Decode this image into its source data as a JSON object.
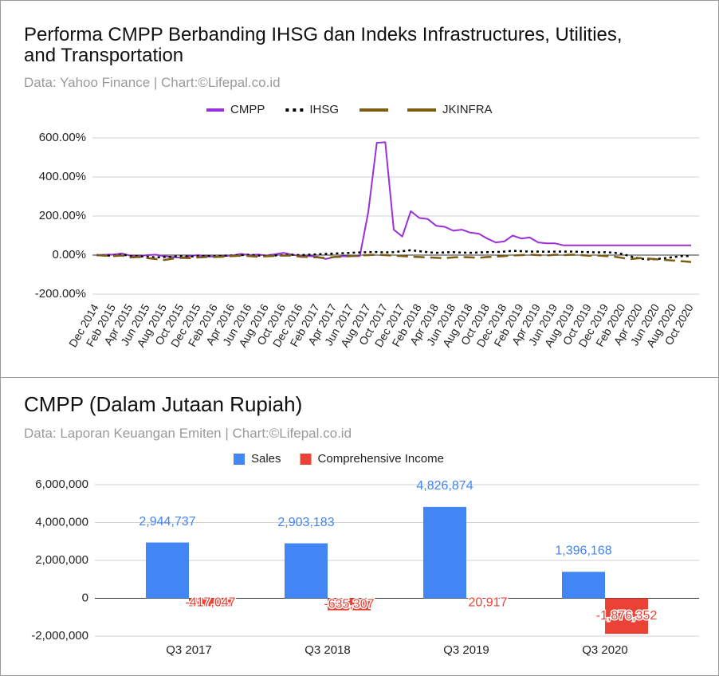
{
  "chart_data": [
    {
      "type": "line",
      "title": "Performa CMPP Berbanding IHSG dan Indeks Infrastructures, Utilities, and Transportation",
      "subtitle": "Data: Yahoo Finance | Chart:©Lifepal.co.id",
      "categories": [
        "Dec 2014",
        null,
        "Feb 2015",
        null,
        "Apr 2015",
        null,
        "Jun 2015",
        null,
        "Aug 2015",
        null,
        "Oct 2015",
        null,
        "Dec 2015",
        null,
        "Feb 2016",
        null,
        "Apr 2016",
        null,
        "Jun 2016",
        null,
        "Aug 2016",
        null,
        "Oct 2016",
        null,
        "Dec 2016",
        null,
        "Feb 2017",
        null,
        "Apr 2017",
        null,
        "Jun 2017",
        null,
        "Aug 2017",
        null,
        "Oct 2017",
        null,
        "Dec 2017",
        null,
        "Feb 2018",
        null,
        "Apr 2018",
        null,
        "Jun 2018",
        null,
        "Aug 2018",
        null,
        "Oct 2018",
        null,
        "Dec 2018",
        null,
        "Feb 2019",
        null,
        "Apr 2019",
        null,
        "Jun 2019",
        null,
        "Aug 2019",
        null,
        "Oct 2019",
        null,
        "Dec 2019",
        null,
        "Feb 2020",
        null,
        "Apr 2020",
        null,
        "Jun 2020",
        null,
        "Aug 2020",
        null,
        "Oct 2020"
      ],
      "series": [
        {
          "name": "CMPP",
          "color": "#9b30d9",
          "line_style": "solid",
          "values": [
            0,
            2,
            3,
            8,
            -3,
            -5,
            0,
            2,
            -6,
            -10,
            -14,
            -4,
            0,
            -6,
            -8,
            -5,
            -2,
            6,
            0,
            3,
            -2,
            4,
            12,
            2,
            -4,
            -5,
            -8,
            -20,
            -10,
            -6,
            -6,
            -5,
            220,
            575,
            578,
            130,
            95,
            225,
            190,
            185,
            150,
            145,
            125,
            130,
            115,
            110,
            85,
            65,
            70,
            100,
            85,
            90,
            65,
            60,
            60,
            50,
            50,
            50,
            50,
            50,
            50,
            50,
            50,
            50,
            50,
            50,
            50,
            50,
            50,
            50,
            50
          ]
        },
        {
          "name": "IHSG",
          "color": "#000000",
          "line_style": "dotted",
          "values": [
            0,
            -2,
            -3,
            3,
            -4,
            -6,
            -8,
            -12,
            -10,
            -8,
            -6,
            -8,
            -5,
            -4,
            -6,
            -3,
            -2,
            0,
            2,
            -2,
            -4,
            -2,
            0,
            2,
            0,
            2,
            4,
            6,
            8,
            10,
            12,
            14,
            15,
            16,
            14,
            15,
            20,
            25,
            20,
            15,
            12,
            14,
            15,
            13,
            12,
            14,
            15,
            16,
            18,
            22,
            20,
            18,
            18,
            17,
            18,
            18,
            18,
            16,
            15,
            14,
            15,
            12,
            5,
            -8,
            -18,
            -22,
            -20,
            -15,
            -10,
            -5,
            -5
          ]
        },
        {
          "name": "JKINFRA",
          "color": "#7b5e14",
          "line_style": "dashed",
          "values": [
            0,
            -3,
            -5,
            -2,
            -12,
            -10,
            -15,
            -20,
            -25,
            -18,
            -14,
            -15,
            -12,
            -10,
            -10,
            -8,
            -5,
            -3,
            -5,
            -8,
            -6,
            -4,
            -2,
            -3,
            -8,
            -10,
            -12,
            -15,
            -10,
            -8,
            -5,
            -2,
            0,
            2,
            0,
            -3,
            -5,
            -8,
            -10,
            -12,
            -14,
            -15,
            -12,
            -10,
            -12,
            -14,
            -10,
            -8,
            -5,
            -2,
            0,
            2,
            0,
            -2,
            2,
            0,
            2,
            0,
            -3,
            -2,
            -5,
            -8,
            -15,
            -20,
            -15,
            -18,
            -22,
            -25,
            -28,
            -32,
            -35
          ]
        }
      ],
      "ylim": [
        -200,
        600
      ],
      "yticks": [
        {
          "value": -200,
          "label": "-200.00%"
        },
        {
          "value": 0,
          "label": "0.00%"
        },
        {
          "value": 200,
          "label": "200.00%"
        },
        {
          "value": 400,
          "label": "400.00%"
        },
        {
          "value": 600,
          "label": "600.00%"
        }
      ],
      "grid": true,
      "legend": "top"
    },
    {
      "type": "bar",
      "title": "CMPP (Dalam Jutaan Rupiah)",
      "subtitle": "Data: Laporan Keuangan Emiten | Chart:©Lifepal.co.id",
      "categories": [
        "Q3 2017",
        "Q3 2018",
        "Q3 2019",
        "Q3 2020"
      ],
      "series": [
        {
          "name": "Sales",
          "color": "#4285f4",
          "values": [
            2944737,
            2903183,
            4826874,
            1396168
          ],
          "value_labels": [
            "2,944,737",
            "2,903,183",
            "4,826,874",
            "1,396,168"
          ]
        },
        {
          "name": "Comprehensive Income",
          "color": "#ea4335",
          "values": [
            -417047,
            -635307,
            20917,
            -1876352
          ],
          "value_labels": [
            "-417,047",
            "-635,307",
            "20,917",
            "-1,876,352"
          ]
        }
      ],
      "ylim": [
        -2000000,
        6000000
      ],
      "yticks": [
        {
          "value": -2000000,
          "label": "-2,000,000"
        },
        0,
        {
          "value": 2000000,
          "label": "2,000,000"
        },
        {
          "value": 4000000,
          "label": "4,000,000"
        },
        {
          "value": 6000000,
          "label": "6,000,000"
        }
      ],
      "grid": true,
      "legend": "top"
    }
  ]
}
